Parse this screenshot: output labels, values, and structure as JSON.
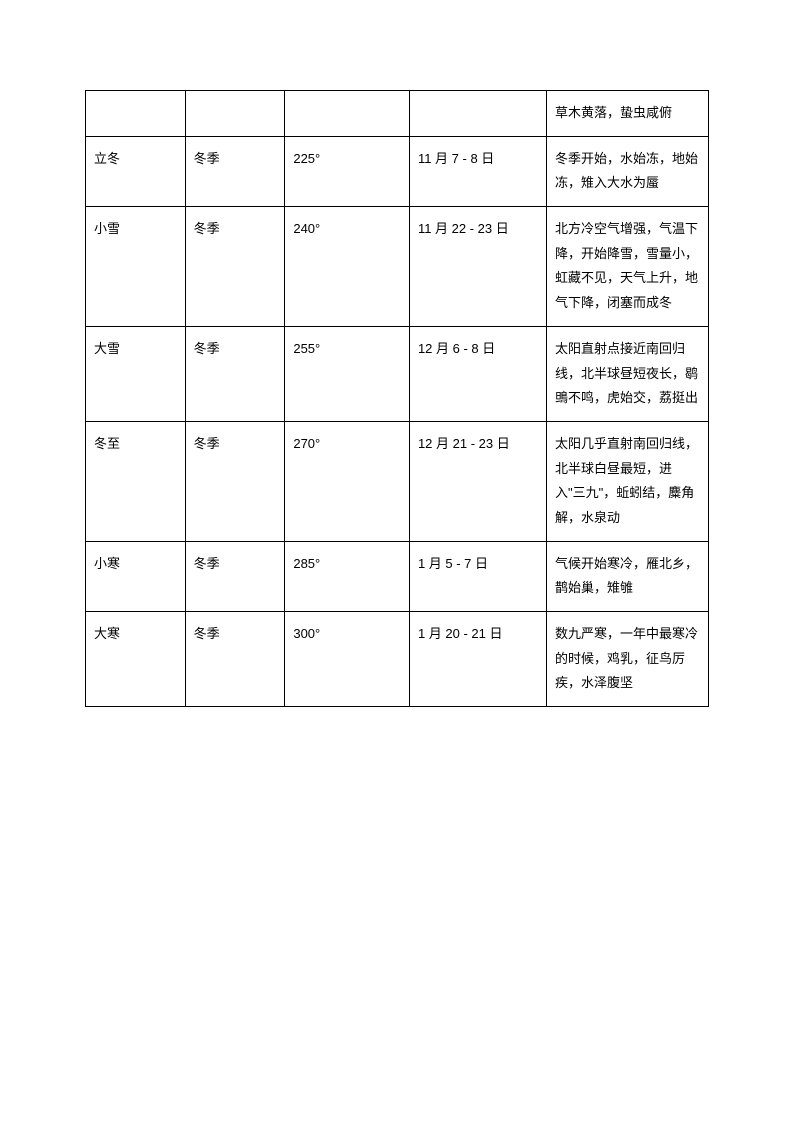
{
  "table": {
    "type": "table",
    "border_color": "#000000",
    "background_color": "#ffffff",
    "text_color": "#000000",
    "font_size": 13,
    "columns": [
      {
        "key": "term",
        "width_pct": 16
      },
      {
        "key": "season",
        "width_pct": 16
      },
      {
        "key": "degree",
        "width_pct": 20
      },
      {
        "key": "date",
        "width_pct": 22
      },
      {
        "key": "description",
        "width_pct": 26
      }
    ],
    "rows": [
      {
        "term": "",
        "season": "",
        "degree": "",
        "date": "",
        "description": "草木黄落，蛰虫咸俯"
      },
      {
        "term": "立冬",
        "season": "冬季",
        "degree": "225°",
        "date": "11 月 7 - 8 日",
        "description": "冬季开始，水始冻，地始冻，雉入大水为蜃"
      },
      {
        "term": "小雪",
        "season": "冬季",
        "degree": "240°",
        "date": "11 月 22 - 23 日",
        "description": "北方冷空气增强，气温下降，开始降雪，雪量小，虹藏不见，天气上升，地气下降，闭塞而成冬"
      },
      {
        "term": "大雪",
        "season": "冬季",
        "degree": "255°",
        "date": "12 月 6 - 8 日",
        "description": "太阳直射点接近南回归线，北半球昼短夜长，鹖鴠不鸣，虎始交，荔挺出"
      },
      {
        "term": "冬至",
        "season": "冬季",
        "degree": "270°",
        "date": "12 月 21 - 23 日",
        "description": "太阳几乎直射南回归线，北半球白昼最短，进入\"三九\"，蚯蚓结，麋角解，水泉动"
      },
      {
        "term": "小寒",
        "season": "冬季",
        "degree": "285°",
        "date": "1 月 5 - 7 日",
        "description": "气候开始寒冷，雁北乡，鹊始巢，雉雊"
      },
      {
        "term": "大寒",
        "season": "冬季",
        "degree": "300°",
        "date": "1 月 20 - 21 日",
        "description": "数九严寒，一年中最寒冷的时候，鸡乳，征鸟厉疾，水泽腹坚"
      }
    ]
  }
}
